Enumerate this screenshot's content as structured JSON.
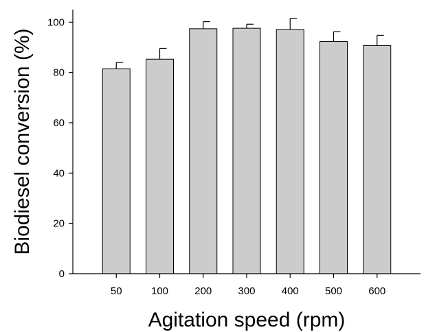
{
  "chart_data": {
    "type": "bar",
    "categories": [
      "50",
      "100",
      "200",
      "300",
      "400",
      "500",
      "600"
    ],
    "values": [
      81.5,
      85.3,
      97.4,
      97.6,
      97.1,
      92.3,
      90.7
    ],
    "error_up": [
      2.5,
      4.3,
      2.8,
      1.6,
      4.4,
      3.9,
      4.1
    ],
    "xlabel": "Agitation speed (rpm)",
    "ylabel": "Biodiesel conversion (%)",
    "ylim": [
      0,
      105
    ],
    "yticks": [
      0,
      20,
      40,
      60,
      80,
      100
    ],
    "grid": false,
    "bar_color": "#cccccc",
    "edge_color": "#000000"
  }
}
